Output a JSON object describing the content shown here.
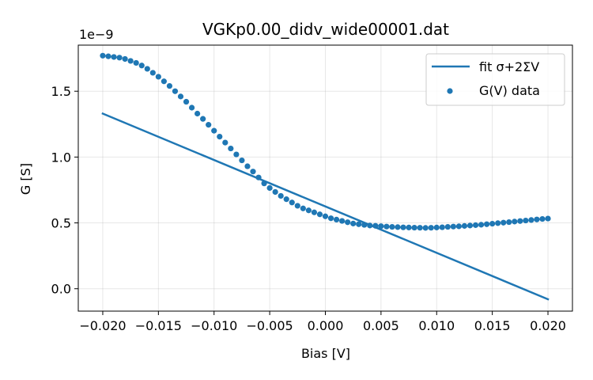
{
  "chart_data": {
    "type": "scatter",
    "title": "VGKp0.00_didv_wide00001.dat",
    "xlabel": "Bias [V]",
    "ylabel": "G [S]",
    "y_offset_label": "1e−9",
    "xlim": [
      -0.0222,
      0.0222
    ],
    "ylim": [
      -0.17,
      1.85
    ],
    "grid": true,
    "legend_position": "top-right",
    "x_ticks": [
      -0.02,
      -0.015,
      -0.01,
      -0.005,
      0.0,
      0.005,
      0.01,
      0.015,
      0.02
    ],
    "x_tick_labels": [
      "−0.020",
      "−0.015",
      "−0.010",
      "−0.005",
      "0.000",
      "0.005",
      "0.010",
      "0.015",
      "0.020"
    ],
    "y_ticks": [
      0.0,
      0.5,
      1.0,
      1.5
    ],
    "y_tick_labels": [
      "0.0",
      "0.5",
      "1.0",
      "1.5"
    ],
    "series": [
      {
        "name": "fit σ+2ΣV",
        "kind": "line",
        "color": "#1f77b4",
        "x": [
          -0.02,
          0.02
        ],
        "y": [
          1.33,
          -0.08
        ]
      },
      {
        "name": "G(V) data",
        "kind": "scatter",
        "color": "#1f77b4",
        "x": [
          -0.02,
          -0.0195,
          -0.019,
          -0.0185,
          -0.018,
          -0.0175,
          -0.017,
          -0.0165,
          -0.016,
          -0.0155,
          -0.015,
          -0.0145,
          -0.014,
          -0.0135,
          -0.013,
          -0.0125,
          -0.012,
          -0.0115,
          -0.011,
          -0.0105,
          -0.01,
          -0.0095,
          -0.009,
          -0.0085,
          -0.008,
          -0.0075,
          -0.007,
          -0.0065,
          -0.006,
          -0.0055,
          -0.005,
          -0.0045,
          -0.004,
          -0.0035,
          -0.003,
          -0.0025,
          -0.002,
          -0.0015,
          -0.001,
          -0.0005,
          0.0,
          0.0005,
          0.001,
          0.0015,
          0.002,
          0.0025,
          0.003,
          0.0035,
          0.004,
          0.0045,
          0.005,
          0.0055,
          0.006,
          0.0065,
          0.007,
          0.0075,
          0.008,
          0.0085,
          0.009,
          0.0095,
          0.01,
          0.0105,
          0.011,
          0.0115,
          0.012,
          0.0125,
          0.013,
          0.0135,
          0.014,
          0.0145,
          0.015,
          0.0155,
          0.016,
          0.0165,
          0.017,
          0.0175,
          0.018,
          0.0185,
          0.019,
          0.0195,
          0.02
        ],
        "y": [
          1.77,
          1.765,
          1.76,
          1.755,
          1.745,
          1.73,
          1.715,
          1.695,
          1.67,
          1.64,
          1.61,
          1.575,
          1.54,
          1.5,
          1.46,
          1.42,
          1.375,
          1.33,
          1.29,
          1.245,
          1.2,
          1.155,
          1.11,
          1.065,
          1.02,
          0.975,
          0.93,
          0.89,
          0.845,
          0.8,
          0.765,
          0.735,
          0.705,
          0.68,
          0.655,
          0.63,
          0.61,
          0.595,
          0.58,
          0.565,
          0.55,
          0.535,
          0.525,
          0.515,
          0.505,
          0.495,
          0.49,
          0.485,
          0.48,
          0.478,
          0.475,
          0.472,
          0.47,
          0.468,
          0.466,
          0.465,
          0.464,
          0.463,
          0.462,
          0.463,
          0.465,
          0.467,
          0.47,
          0.472,
          0.474,
          0.477,
          0.48,
          0.483,
          0.486,
          0.49,
          0.494,
          0.498,
          0.502,
          0.506,
          0.51,
          0.514,
          0.518,
          0.522,
          0.526,
          0.53,
          0.533
        ]
      }
    ]
  }
}
